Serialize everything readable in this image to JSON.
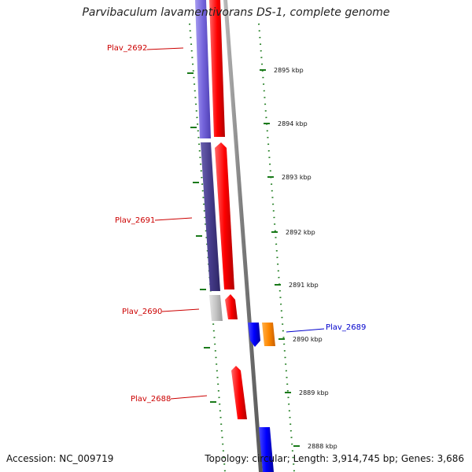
{
  "title": "Parvibaculum lavamentivorans DS-1, complete genome",
  "footer": {
    "accession": "Accession: NC_009719",
    "summary": "Topology: circular; Length: 3,914,745 bp; Genes: 3,686"
  },
  "colors": {
    "forward_gene": "#ff0000",
    "reverse_gene": "#0000ff",
    "reverse_gene_light": "#8877ee",
    "reverse_gene_dark": "#4a3f8f",
    "grey_gene": "#c8c8c8",
    "orange_gene": "#ff8800",
    "backbone": "#888888",
    "tick": "#1a7a1a",
    "label_red": "#cc0000",
    "label_blue": "#0000cc"
  },
  "scale_ticks": [
    {
      "label": "2895 kbp",
      "position_kbp": 2895
    },
    {
      "label": "2894 kbp",
      "position_kbp": 2894
    },
    {
      "label": "2893 kbp",
      "position_kbp": 2893
    },
    {
      "label": "2892 kbp",
      "position_kbp": 2892
    },
    {
      "label": "2891 kbp",
      "position_kbp": 2891
    },
    {
      "label": "2890 kbp",
      "position_kbp": 2890
    },
    {
      "label": "2889 kbp",
      "position_kbp": 2889
    },
    {
      "label": "2888 kbp",
      "position_kbp": 2888
    }
  ],
  "gene_labels": [
    {
      "name": "Plav_2692",
      "color": "#cc0000"
    },
    {
      "name": "Plav_2691",
      "color": "#cc0000"
    },
    {
      "name": "Plav_2690",
      "color": "#cc0000"
    },
    {
      "name": "Plav_2689",
      "color": "#0000cc"
    },
    {
      "name": "Plav_2688",
      "color": "#cc0000"
    }
  ]
}
